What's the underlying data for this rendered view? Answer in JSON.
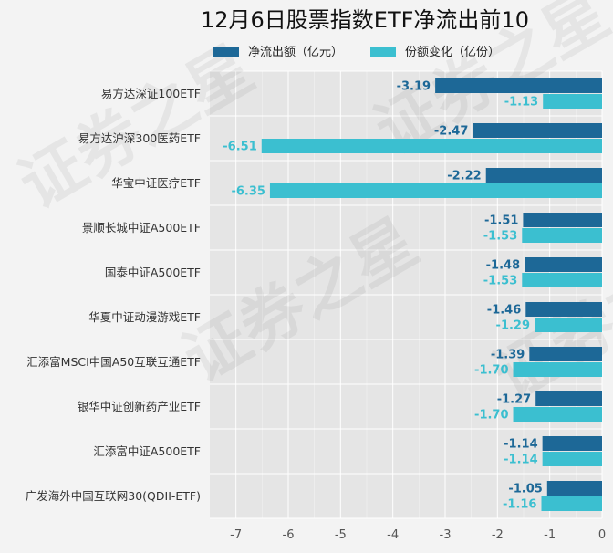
{
  "chart_data": {
    "type": "bar",
    "orientation": "horizontal",
    "title": "12月6日股票指数ETF净流出前10",
    "categories": [
      "易方达深证100ETF",
      "易方达沪深300医药ETF",
      "华宝中证医疗ETF",
      "景顺长城中证A500ETF",
      "国泰中证A500ETF",
      "华夏中证动漫游戏ETF",
      "汇添富MSCI中国A50互联互通ETF",
      "银华中证创新药产业ETF",
      "汇添富中证A500ETF",
      "广发海外中国互联网30(QDII-ETF)"
    ],
    "series": [
      {
        "name": "净流出额（亿元）",
        "color": "#1d6897",
        "values": [
          -3.19,
          -2.47,
          -2.22,
          -1.51,
          -1.48,
          -1.46,
          -1.39,
          -1.27,
          -1.14,
          -1.05
        ],
        "labels": [
          "-3.19",
          "-2.47",
          "-2.22",
          "-1.51",
          "-1.48",
          "-1.46",
          "-1.39",
          "-1.27",
          "-1.14",
          "-1.05"
        ]
      },
      {
        "name": "份额变化（亿份）",
        "color": "#3bbfd0",
        "values": [
          -1.13,
          -6.51,
          -6.35,
          -1.53,
          -1.53,
          -1.29,
          -1.7,
          -1.7,
          -1.14,
          -1.16
        ],
        "labels": [
          "-1.13",
          "-6.51",
          "-6.35",
          "-1.53",
          "-1.53",
          "-1.29",
          "-1.70",
          "-1.70",
          "-1.14",
          "-1.16"
        ]
      }
    ],
    "xlim": [
      -7.5,
      0
    ],
    "xticks": [
      -7,
      -6,
      -5,
      -4,
      -3,
      -2,
      -1,
      0
    ],
    "xtick_labels": [
      "-7",
      "-6",
      "-5",
      "-4",
      "-3",
      "-2",
      "-1",
      "0"
    ],
    "legend_position": "top",
    "grid": true
  },
  "watermark": "证券之星",
  "colors": {
    "plot_background": "#e5e5e5",
    "grid": "#ffffff"
  }
}
